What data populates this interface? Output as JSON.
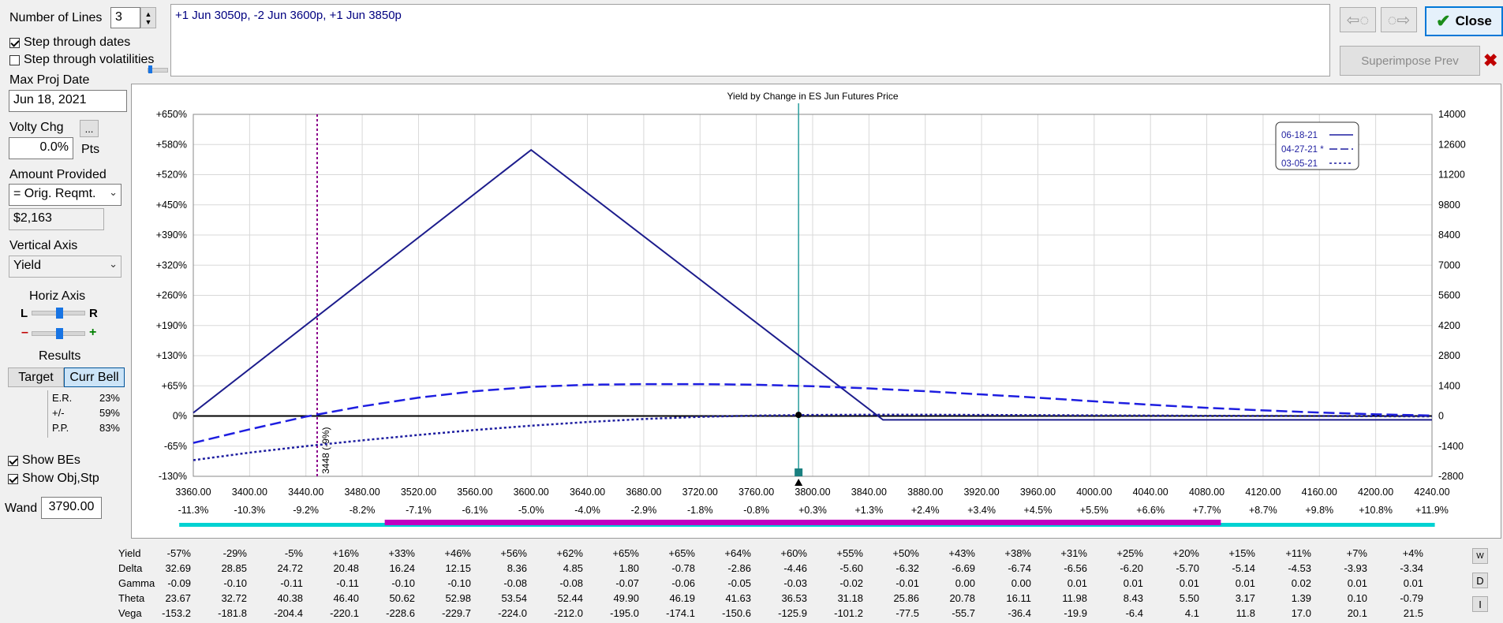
{
  "left_panel": {
    "number_of_lines_label": "Number of Lines",
    "number_of_lines_value": "3",
    "step_through_dates_label": "Step through dates",
    "step_through_dates_checked": true,
    "step_through_volatilities_label": "Step through volatilities",
    "step_through_volatilities_checked": false,
    "max_proj_date_label": "Max Proj Date",
    "max_proj_date_value": "Jun 18, 2021",
    "volty_chg_label": "Volty Chg",
    "volty_chg_button": "...",
    "volty_chg_value": "0.0%",
    "volty_chg_unit": "Pts",
    "amount_provided_label": "Amount Provided",
    "amount_provided_value": "= Orig. Reqmt.",
    "amount_value": "$2,163",
    "vertical_axis_label": "Vertical Axis",
    "vertical_axis_value": "Yield",
    "horiz_axis_label": "Horiz Axis",
    "horiz_l": "L",
    "horiz_r": "R",
    "horiz_minus": "–",
    "horiz_plus": "+",
    "results_label": "Results",
    "target_button": "Target",
    "curr_bell_button": "Curr Bell",
    "results": [
      {
        "label": "E.R.",
        "value": "23%"
      },
      {
        "label": "+/-",
        "value": "59%"
      },
      {
        "label": "P.P.",
        "value": "83%"
      }
    ],
    "show_bes_label": "Show BEs",
    "show_bes_checked": true,
    "show_obj_label": "Show Obj,Stp",
    "show_obj_checked": true,
    "wand_label": "Wand",
    "wand_value": "3790.00"
  },
  "position_text": "+1 Jun 3050p, -2 Jun 3600p, +1 Jun 3850p",
  "toolbar": {
    "back_icon": "arrow-left-icon",
    "forward_icon": "arrow-right-icon",
    "close_label": "Close",
    "superimpose_label": "Superimpose Prev"
  },
  "chart_data": {
    "type": "line",
    "title": "Yield by Change in ES Jun Futures Price",
    "x_ticks": [
      3360,
      3400,
      3440,
      3480,
      3520,
      3560,
      3600,
      3640,
      3680,
      3720,
      3760,
      3800,
      3840,
      3880,
      3920,
      3960,
      4000,
      4040,
      4080,
      4120,
      4160,
      4200,
      4240
    ],
    "x_tick_labels": [
      "3360.00",
      "3400.00",
      "3440.00",
      "3480.00",
      "3520.00",
      "3560.00",
      "3600.00",
      "3640.00",
      "3680.00",
      "3720.00",
      "3760.00",
      "3800.00",
      "3840.00",
      "3880.00",
      "3920.00",
      "3960.00",
      "4000.00",
      "4040.00",
      "4080.00",
      "4120.00",
      "4160.00",
      "4200.00",
      "4240.00"
    ],
    "x_pct_labels": [
      "-11.3%",
      "-10.3%",
      "-9.2%",
      "-8.2%",
      "-7.1%",
      "-6.1%",
      "-5.0%",
      "-4.0%",
      "-2.9%",
      "-1.8%",
      "-0.8%",
      "+0.3%",
      "+1.3%",
      "+2.4%",
      "+3.4%",
      "+4.5%",
      "+5.5%",
      "+6.6%",
      "+7.7%",
      "+8.7%",
      "+9.8%",
      "+10.8%",
      "+11.9%"
    ],
    "xlim": [
      3360,
      4240
    ],
    "y_left_labels": [
      "+650%",
      "+580%",
      "+520%",
      "+450%",
      "+390%",
      "+320%",
      "+260%",
      "+190%",
      "+130%",
      "+65%",
      "0%",
      "-65%",
      "-130%"
    ],
    "y_right_labels": [
      "14000",
      "12600",
      "11200",
      "9800",
      "8400",
      "7000",
      "5600",
      "4200",
      "2800",
      "1400",
      "0",
      "-1400",
      "-2800"
    ],
    "ylim": [
      -2800,
      14000
    ],
    "grid": true,
    "legend_position": "top-right",
    "legend": [
      {
        "name": "06-18-21",
        "style": "solid"
      },
      {
        "name": "04-27-21 *",
        "style": "dashed"
      },
      {
        "name": "03-05-21",
        "style": "dotted"
      }
    ],
    "series": [
      {
        "name": "06-18-21",
        "style": "solid",
        "color": "#1c1c8c",
        "x": [
          3360,
          3600,
          3850,
          4240
        ],
        "y": [
          150,
          12350,
          -180,
          -180
        ]
      },
      {
        "name": "04-27-21 *",
        "style": "dashed",
        "color": "#1e1ee0",
        "x": [
          3360,
          3400,
          3440,
          3480,
          3520,
          3560,
          3600,
          3640,
          3680,
          3720,
          3760,
          3800,
          3840,
          3880,
          3920,
          3960,
          4000,
          4040,
          4080,
          4120,
          4160,
          4200,
          4240
        ],
        "y": [
          -1250,
          -620,
          -30,
          450,
          850,
          1150,
          1350,
          1450,
          1480,
          1480,
          1450,
          1380,
          1280,
          1150,
          1000,
          850,
          680,
          520,
          380,
          260,
          160,
          80,
          20
        ]
      },
      {
        "name": "03-05-21",
        "style": "dotted",
        "color": "#1e1ea0",
        "x": [
          3360,
          3400,
          3440,
          3480,
          3520,
          3560,
          3600,
          3640,
          3680,
          3720,
          3760,
          3800,
          3840,
          3880,
          3920,
          3960,
          4000,
          4040,
          4080,
          4120,
          4160,
          4200,
          4240
        ],
        "y": [
          -2050,
          -1700,
          -1400,
          -1130,
          -880,
          -650,
          -450,
          -280,
          -140,
          -40,
          20,
          50,
          60,
          60,
          50,
          40,
          30,
          20,
          10,
          5,
          0,
          -10,
          -20
        ]
      }
    ],
    "breakeven": {
      "x": 3448,
      "label": "3448 (-9%)"
    },
    "wand_x": 3790,
    "target_range": [
      3350,
      4242
    ],
    "bell_range": [
      3496,
      4090
    ]
  },
  "greeks": {
    "rows": [
      {
        "name": "Yield",
        "values": [
          "-57%",
          "-29%",
          "-5%",
          "+16%",
          "+33%",
          "+46%",
          "+56%",
          "+62%",
          "+65%",
          "+65%",
          "+64%",
          "+60%",
          "+55%",
          "+50%",
          "+43%",
          "+38%",
          "+31%",
          "+25%",
          "+20%",
          "+15%",
          "+11%",
          "+7%",
          "+4%"
        ]
      },
      {
        "name": "Delta",
        "values": [
          "32.69",
          "28.85",
          "24.72",
          "20.48",
          "16.24",
          "12.15",
          "8.36",
          "4.85",
          "1.80",
          "-0.78",
          "-2.86",
          "-4.46",
          "-5.60",
          "-6.32",
          "-6.69",
          "-6.74",
          "-6.56",
          "-6.20",
          "-5.70",
          "-5.14",
          "-4.53",
          "-3.93",
          "-3.34"
        ]
      },
      {
        "name": "Gamma",
        "values": [
          "-0.09",
          "-0.10",
          "-0.11",
          "-0.11",
          "-0.10",
          "-0.10",
          "-0.08",
          "-0.08",
          "-0.07",
          "-0.06",
          "-0.05",
          "-0.03",
          "-0.02",
          "-0.01",
          "0.00",
          "0.00",
          "0.01",
          "0.01",
          "0.01",
          "0.01",
          "0.02",
          "0.01",
          "0.01"
        ]
      },
      {
        "name": "Theta",
        "values": [
          "23.67",
          "32.72",
          "40.38",
          "46.40",
          "50.62",
          "52.98",
          "53.54",
          "52.44",
          "49.90",
          "46.19",
          "41.63",
          "36.53",
          "31.18",
          "25.86",
          "20.78",
          "16.11",
          "11.98",
          "8.43",
          "5.50",
          "3.17",
          "1.39",
          "0.10",
          "-0.79"
        ]
      },
      {
        "name": "Vega",
        "values": [
          "-153.2",
          "-181.8",
          "-204.4",
          "-220.1",
          "-228.6",
          "-229.7",
          "-224.0",
          "-212.0",
          "-195.0",
          "-174.1",
          "-150.6",
          "-125.9",
          "-101.2",
          "-77.5",
          "-55.7",
          "-36.4",
          "-19.9",
          "-6.4",
          "4.1",
          "11.8",
          "17.0",
          "20.1",
          "21.5"
        ]
      }
    ],
    "side_buttons": [
      "W",
      "D",
      "I"
    ]
  }
}
